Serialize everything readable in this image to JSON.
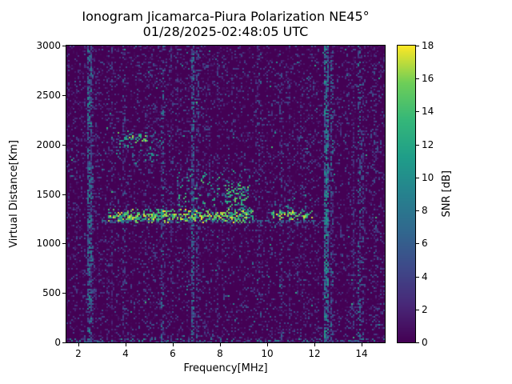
{
  "chart_data": {
    "type": "heatmap",
    "title": "Ionogram Jicamarca-Piura Polarization NE45°",
    "subtitle": "01/28/2025-02:48:05 UTC",
    "xlabel": "Frequency[MHz]",
    "ylabel": "Virtual Distance[Km]",
    "xlim": [
      1.5,
      15.0
    ],
    "ylim": [
      0,
      3000
    ],
    "x_ticks": [
      2,
      4,
      6,
      8,
      10,
      12,
      14
    ],
    "y_ticks": [
      0,
      500,
      1000,
      1500,
      2000,
      2500,
      3000
    ],
    "grid": false,
    "colormap": "viridis",
    "colormap_stops": [
      [
        0.0,
        "#440154"
      ],
      [
        0.125,
        "#482878"
      ],
      [
        0.25,
        "#3e4989"
      ],
      [
        0.375,
        "#31688e"
      ],
      [
        0.5,
        "#26828e"
      ],
      [
        0.625,
        "#1f9e89"
      ],
      [
        0.75,
        "#35b779"
      ],
      [
        0.875,
        "#6ece58"
      ],
      [
        1.0,
        "#fde725"
      ]
    ],
    "colorbar": {
      "label": "SNR [dB]",
      "vmin": 0,
      "vmax": 18,
      "ticks": [
        0,
        2,
        4,
        6,
        8,
        10,
        12,
        14,
        16,
        18
      ],
      "position": "right"
    },
    "background_snr_db": 0,
    "noise": {
      "speckle_density": 0.3,
      "speckle_max_db": 5.5,
      "bright_speckle_density": 0.003,
      "column_streak_density": 0.08,
      "seed": 1337
    },
    "echo_regions": [
      {
        "name": "f-trace-core",
        "x": [
          3.2,
          9.45
        ],
        "y_center_km": 1275,
        "y_spread_km": 70,
        "density": 0.7,
        "snr_db": [
          9,
          18
        ]
      },
      {
        "name": "f-trace-top-spread",
        "x": [
          6.1,
          9.3
        ],
        "y_center_km": 1520,
        "y_spread_km": 230,
        "density": 0.14,
        "snr_db": [
          5,
          15
        ]
      },
      {
        "name": "f-trace-cusp",
        "x": [
          8.2,
          9.3
        ],
        "y_center_km": 1450,
        "y_spread_km": 150,
        "density": 0.3,
        "snr_db": [
          7,
          16
        ]
      },
      {
        "name": "second-trace",
        "x": [
          10.15,
          11.95
        ],
        "y_center_km": 1285,
        "y_spread_km": 50,
        "density": 0.55,
        "snr_db": [
          9,
          18
        ]
      },
      {
        "name": "second-trace-halo",
        "x": [
          10.2,
          11.9
        ],
        "y_center_km": 1380,
        "y_spread_km": 120,
        "density": 0.08,
        "snr_db": [
          4,
          12
        ]
      },
      {
        "name": "baseline-line",
        "x": [
          3.0,
          12.45
        ],
        "y_center_km": 1222,
        "y_spread_km": 16,
        "density": 0.55,
        "snr_db": [
          3,
          8
        ]
      },
      {
        "name": "second-hop-core",
        "x": [
          3.7,
          5.0
        ],
        "y_center_km": 2050,
        "y_spread_km": 90,
        "density": 0.3,
        "snr_db": [
          7,
          17
        ]
      },
      {
        "name": "second-hop-halo",
        "x": [
          3.4,
          5.8
        ],
        "y_center_km": 1975,
        "y_spread_km": 150,
        "density": 0.12,
        "snr_db": [
          4,
          12
        ]
      },
      {
        "name": "ground-clutter",
        "x": [
          1.5,
          15.0
        ],
        "y_center_km": 12,
        "y_spread_km": 30,
        "density": 0.3,
        "snr_db": [
          3,
          11
        ]
      }
    ],
    "rfi_lines": [
      {
        "x_mhz": 2.5,
        "width_mhz": 0.12,
        "density": 0.6,
        "snr_db": [
          3,
          10
        ]
      },
      {
        "x_mhz": 2.62,
        "width_mhz": 0.06,
        "density": 0.3,
        "snr_db": [
          2,
          8
        ]
      },
      {
        "x_mhz": 3.95,
        "width_mhz": 0.05,
        "density": 0.2,
        "snr_db": [
          2,
          7
        ]
      },
      {
        "x_mhz": 5.6,
        "width_mhz": 0.06,
        "density": 0.35,
        "snr_db": [
          2,
          9
        ]
      },
      {
        "x_mhz": 6.85,
        "width_mhz": 0.1,
        "density": 0.55,
        "snr_db": [
          3,
          10
        ]
      },
      {
        "x_mhz": 7.05,
        "width_mhz": 0.05,
        "density": 0.28,
        "snr_db": [
          2,
          8
        ]
      },
      {
        "x_mhz": 9.7,
        "width_mhz": 0.05,
        "density": 0.18,
        "snr_db": [
          2,
          7
        ]
      },
      {
        "x_mhz": 10.6,
        "width_mhz": 0.05,
        "density": 0.18,
        "snr_db": [
          2,
          7
        ]
      },
      {
        "x_mhz": 12.5,
        "width_mhz": 0.14,
        "density": 0.7,
        "snr_db": [
          4,
          12
        ]
      },
      {
        "x_mhz": 12.75,
        "width_mhz": 0.06,
        "density": 0.35,
        "snr_db": [
          2,
          9
        ]
      },
      {
        "x_mhz": 13.9,
        "width_mhz": 0.07,
        "density": 0.4,
        "snr_db": [
          3,
          10
        ]
      },
      {
        "x_mhz": 14.05,
        "width_mhz": 0.05,
        "density": 0.25,
        "snr_db": [
          2,
          8
        ]
      },
      {
        "x_mhz": 14.6,
        "width_mhz": 0.05,
        "density": 0.18,
        "snr_db": [
          2,
          7
        ]
      }
    ]
  }
}
